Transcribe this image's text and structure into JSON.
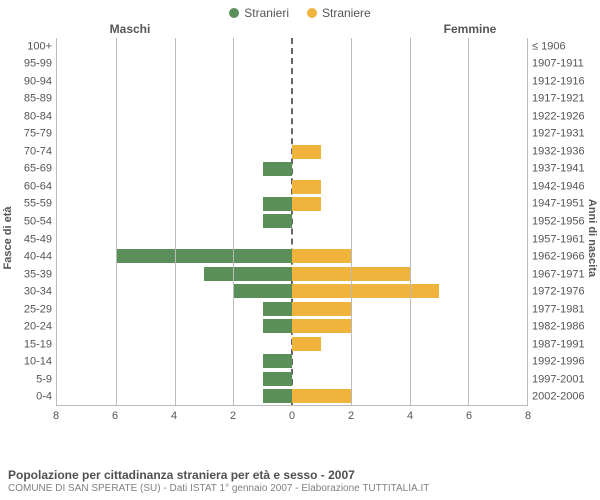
{
  "chart": {
    "type": "population-pyramid",
    "legend": {
      "male": {
        "label": "Stranieri",
        "color": "#5a8f5a"
      },
      "female": {
        "label": "Straniere",
        "color": "#f0b43c"
      }
    },
    "col_header_left": "Maschi",
    "col_header_right": "Femmine",
    "y_axis_left_title": "Fasce di età",
    "y_axis_right_title": "Anni di nascita",
    "x_max": 8,
    "x_ticks": [
      8,
      6,
      4,
      2,
      0,
      2,
      4,
      6,
      8
    ],
    "grid_color": "#bbbbbb",
    "center_line_color": "#666666",
    "background_color": "#ffffff",
    "label_fontsize": 11,
    "legend_fontsize": 12,
    "rows": [
      {
        "age": "100+",
        "birth": "≤ 1906",
        "m": 0,
        "f": 0
      },
      {
        "age": "95-99",
        "birth": "1907-1911",
        "m": 0,
        "f": 0
      },
      {
        "age": "90-94",
        "birth": "1912-1916",
        "m": 0,
        "f": 0
      },
      {
        "age": "85-89",
        "birth": "1917-1921",
        "m": 0,
        "f": 0
      },
      {
        "age": "80-84",
        "birth": "1922-1926",
        "m": 0,
        "f": 0
      },
      {
        "age": "75-79",
        "birth": "1927-1931",
        "m": 0,
        "f": 0
      },
      {
        "age": "70-74",
        "birth": "1932-1936",
        "m": 0,
        "f": 1
      },
      {
        "age": "65-69",
        "birth": "1937-1941",
        "m": 1,
        "f": 0
      },
      {
        "age": "60-64",
        "birth": "1942-1946",
        "m": 0,
        "f": 1
      },
      {
        "age": "55-59",
        "birth": "1947-1951",
        "m": 1,
        "f": 1
      },
      {
        "age": "50-54",
        "birth": "1952-1956",
        "m": 1,
        "f": 0
      },
      {
        "age": "45-49",
        "birth": "1957-1961",
        "m": 0,
        "f": 0
      },
      {
        "age": "40-44",
        "birth": "1962-1966",
        "m": 6,
        "f": 2
      },
      {
        "age": "35-39",
        "birth": "1967-1971",
        "m": 3,
        "f": 4
      },
      {
        "age": "30-34",
        "birth": "1972-1976",
        "m": 2,
        "f": 5
      },
      {
        "age": "25-29",
        "birth": "1977-1981",
        "m": 1,
        "f": 2
      },
      {
        "age": "20-24",
        "birth": "1982-1986",
        "m": 1,
        "f": 2
      },
      {
        "age": "15-19",
        "birth": "1987-1991",
        "m": 0,
        "f": 1
      },
      {
        "age": "10-14",
        "birth": "1992-1996",
        "m": 1,
        "f": 0
      },
      {
        "age": "5-9",
        "birth": "1997-2001",
        "m": 1,
        "f": 0
      },
      {
        "age": "0-4",
        "birth": "2002-2006",
        "m": 1,
        "f": 2
      }
    ]
  },
  "caption": {
    "title": "Popolazione per cittadinanza straniera per età e sesso - 2007",
    "subtitle": "COMUNE DI SAN SPERATE (SU) - Dati ISTAT 1° gennaio 2007 - Elaborazione TUTTITALIA.IT"
  }
}
